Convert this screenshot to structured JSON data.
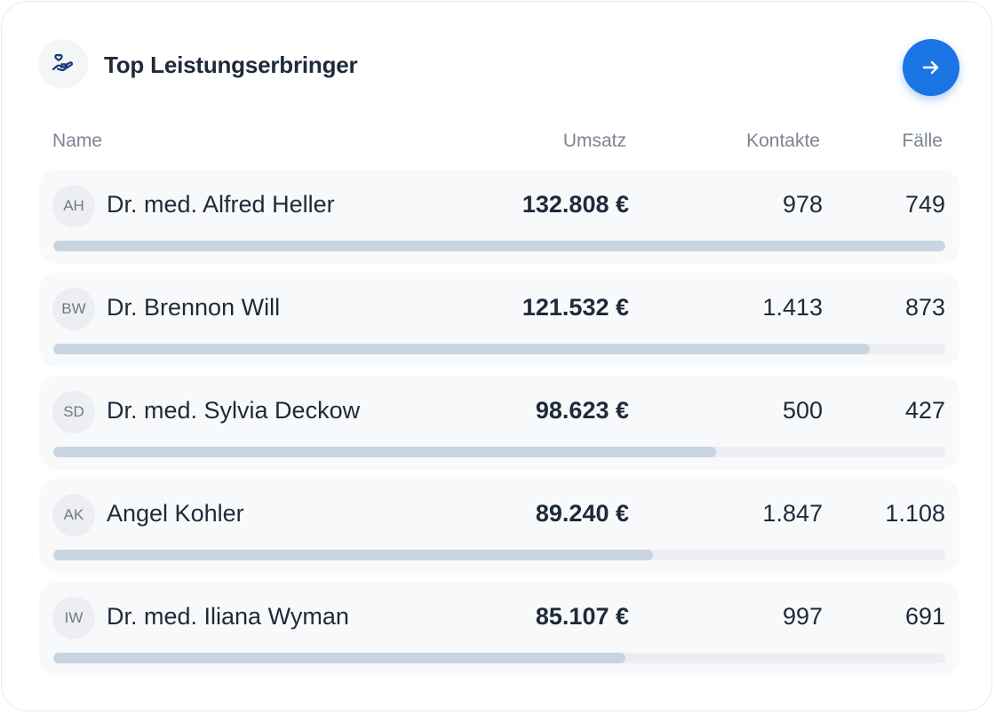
{
  "widget": {
    "title": "Top Leistungserbringer",
    "icon": "hand-heart-icon",
    "action_icon": "arrow-right-icon",
    "accent_color": "#1b74e4"
  },
  "columns": {
    "name": "Name",
    "revenue": "Umsatz",
    "contacts": "Kontakte",
    "cases": "Fälle"
  },
  "providers": [
    {
      "initials": "AH",
      "name": "Dr. med. Alfred Heller",
      "revenue": "132.808 €",
      "contacts": "978",
      "cases": "749",
      "share": 1.0
    },
    {
      "initials": "BW",
      "name": "Dr. Brennon Will",
      "revenue": "121.532 €",
      "contacts": "1.413",
      "cases": "873",
      "share": 0.915
    },
    {
      "initials": "SD",
      "name": "Dr. med. Sylvia Deckow",
      "revenue": "98.623 €",
      "contacts": "500",
      "cases": "427",
      "share": 0.743
    },
    {
      "initials": "AK",
      "name": "Angel Kohler",
      "revenue": "89.240 €",
      "contacts": "1.847",
      "cases": "1.108",
      "share": 0.672
    },
    {
      "initials": "IW",
      "name": "Dr. med. Iliana Wyman",
      "revenue": "85.107 €",
      "contacts": "997",
      "cases": "691",
      "share": 0.641
    }
  ]
}
